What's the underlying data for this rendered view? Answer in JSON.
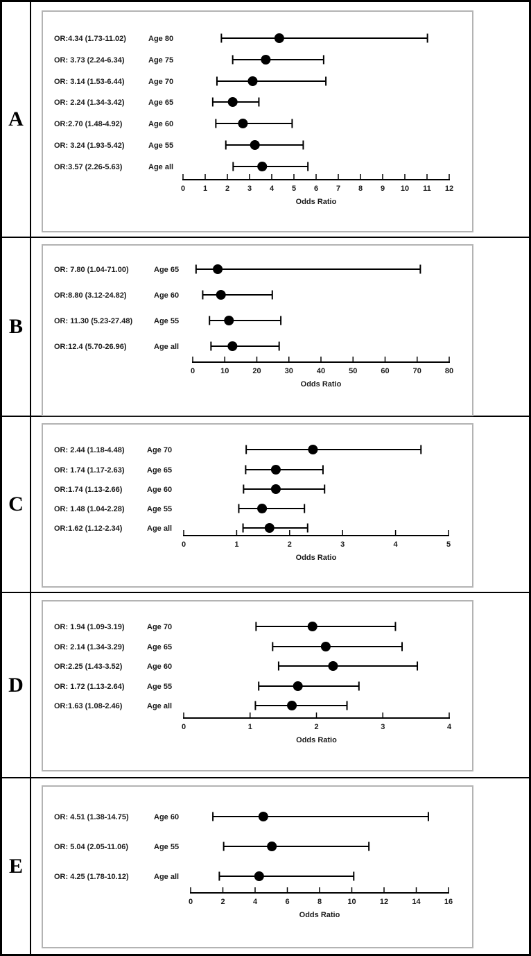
{
  "figure": {
    "axis_title": "Odds Ratio",
    "line_color": "#000000",
    "text_color": "#1a1a1a",
    "box_border_color": "#b3b3b3"
  },
  "chart_data": [
    {
      "type": "scatter",
      "panel": "A",
      "xlabel": "Odds Ratio",
      "xlim": [
        0,
        12
      ],
      "xticks": [
        0,
        1,
        2,
        3,
        4,
        5,
        6,
        7,
        8,
        9,
        10,
        11,
        12
      ],
      "legend": "none",
      "grid": false,
      "rows": [
        {
          "text": "OR:4.34 (1.73-11.02)",
          "age": "Age 80",
          "or": 4.34,
          "ci": [
            1.73,
            11.02
          ]
        },
        {
          "text": "OR: 3.73 (2.24-6.34)",
          "age": "Age 75",
          "or": 3.73,
          "ci": [
            2.24,
            6.34
          ]
        },
        {
          "text": "OR: 3.14 (1.53-6.44)",
          "age": "Age 70",
          "or": 3.14,
          "ci": [
            1.53,
            6.44
          ]
        },
        {
          "text": "OR: 2.24 (1.34-3.42)",
          "age": "Age 65",
          "or": 2.24,
          "ci": [
            1.34,
            3.42
          ]
        },
        {
          "text": "OR:2.70 (1.48-4.92)",
          "age": "Age 60",
          "or": 2.7,
          "ci": [
            1.48,
            4.92
          ]
        },
        {
          "text": "OR: 3.24 (1.93-5.42)",
          "age": "Age 55",
          "or": 3.24,
          "ci": [
            1.93,
            5.42
          ]
        },
        {
          "text": "OR:3.57 (2.26-5.63)",
          "age": "Age all",
          "or": 3.57,
          "ci": [
            2.26,
            5.63
          ]
        }
      ]
    },
    {
      "type": "scatter",
      "panel": "B",
      "xlabel": "Odds Ratio",
      "xlim": [
        0,
        80
      ],
      "xticks": [
        0,
        10,
        20,
        30,
        40,
        50,
        60,
        70,
        80
      ],
      "legend": "none",
      "grid": false,
      "rows": [
        {
          "text": "OR: 7.80 (1.04-71.00)",
          "age": "Age 65",
          "or": 7.8,
          "ci": [
            1.04,
            71.0
          ]
        },
        {
          "text": "OR:8.80 (3.12-24.82)",
          "age": "Age 60",
          "or": 8.8,
          "ci": [
            3.12,
            24.82
          ]
        },
        {
          "text": "OR: 11.30 (5.23-27.48)",
          "age": "Age 55",
          "or": 11.3,
          "ci": [
            5.23,
            27.48
          ]
        },
        {
          "text": "OR:12.4 (5.70-26.96)",
          "age": "Age all",
          "or": 12.4,
          "ci": [
            5.7,
            26.96
          ]
        }
      ]
    },
    {
      "type": "scatter",
      "panel": "C",
      "xlabel": "Odds Ratio",
      "xlim": [
        0,
        5
      ],
      "xticks": [
        0,
        1,
        2,
        3,
        4,
        5
      ],
      "legend": "none",
      "grid": false,
      "rows": [
        {
          "text": "OR: 2.44 (1.18-4.48)",
          "age": "Age 70",
          "or": 2.44,
          "ci": [
            1.18,
            4.48
          ]
        },
        {
          "text": "OR: 1.74 (1.17-2.63)",
          "age": "Age 65",
          "or": 1.74,
          "ci": [
            1.17,
            2.63
          ]
        },
        {
          "text": "OR:1.74 (1.13-2.66)",
          "age": "Age 60",
          "or": 1.74,
          "ci": [
            1.13,
            2.66
          ]
        },
        {
          "text": "OR: 1.48 (1.04-2.28)",
          "age": "Age 55",
          "or": 1.48,
          "ci": [
            1.04,
            2.28
          ]
        },
        {
          "text": "OR:1.62 (1.12-2.34)",
          "age": "Age all",
          "or": 1.62,
          "ci": [
            1.12,
            2.34
          ]
        }
      ]
    },
    {
      "type": "scatter",
      "panel": "D",
      "xlabel": "Odds Ratio",
      "xlim": [
        0,
        4
      ],
      "xticks": [
        0,
        1,
        2,
        3,
        4
      ],
      "legend": "none",
      "grid": false,
      "rows": [
        {
          "text": "OR: 1.94 (1.09-3.19)",
          "age": "Age 70",
          "or": 1.94,
          "ci": [
            1.09,
            3.19
          ]
        },
        {
          "text": "OR: 2.14 (1.34-3.29)",
          "age": "Age 65",
          "or": 2.14,
          "ci": [
            1.34,
            3.29
          ]
        },
        {
          "text": "OR:2.25 (1.43-3.52)",
          "age": "Age 60",
          "or": 2.25,
          "ci": [
            1.43,
            3.52
          ]
        },
        {
          "text": "OR: 1.72 (1.13-2.64)",
          "age": "Age 55",
          "or": 1.72,
          "ci": [
            1.13,
            2.64
          ]
        },
        {
          "text": "OR:1.63 (1.08-2.46)",
          "age": "Age all",
          "or": 1.63,
          "ci": [
            1.08,
            2.46
          ]
        }
      ]
    },
    {
      "type": "scatter",
      "panel": "E",
      "xlabel": "Odds Ratio",
      "xlim": [
        0,
        16
      ],
      "xticks": [
        0,
        2,
        4,
        6,
        8,
        10,
        12,
        14,
        16
      ],
      "legend": "none",
      "grid": false,
      "rows": [
        {
          "text": "OR: 4.51 (1.38-14.75)",
          "age": "Age 60",
          "or": 4.51,
          "ci": [
            1.38,
            14.75
          ]
        },
        {
          "text": "OR: 5.04 (2.05-11.06)",
          "age": "Age 55",
          "or": 5.04,
          "ci": [
            2.05,
            11.06
          ]
        },
        {
          "text": "OR: 4.25 (1.78-10.12)",
          "age": "Age all",
          "or": 4.25,
          "ci": [
            1.78,
            10.12
          ]
        }
      ]
    }
  ]
}
